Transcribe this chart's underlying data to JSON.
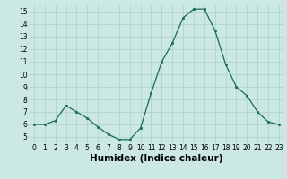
{
  "x": [
    0,
    1,
    2,
    3,
    4,
    5,
    6,
    7,
    8,
    9,
    10,
    11,
    12,
    13,
    14,
    15,
    16,
    17,
    18,
    19,
    20,
    21,
    22,
    23
  ],
  "y": [
    6.0,
    6.0,
    6.3,
    7.5,
    7.0,
    6.5,
    5.8,
    5.2,
    4.8,
    4.8,
    5.7,
    8.5,
    11.0,
    12.5,
    14.5,
    15.2,
    15.2,
    13.5,
    10.8,
    9.0,
    8.3,
    7.0,
    6.2,
    6.0
  ],
  "xlabel": "Humidex (Indice chaleur)",
  "ylim": [
    4.5,
    15.5
  ],
  "xlim": [
    -0.5,
    23.5
  ],
  "yticks": [
    5,
    6,
    7,
    8,
    9,
    10,
    11,
    12,
    13,
    14,
    15
  ],
  "xticks": [
    0,
    1,
    2,
    3,
    4,
    5,
    6,
    7,
    8,
    9,
    10,
    11,
    12,
    13,
    14,
    15,
    16,
    17,
    18,
    19,
    20,
    21,
    22,
    23
  ],
  "line_color": "#1a6b5a",
  "marker_color": "#1a6b5a",
  "bg_color": "#cce8e4",
  "grid_color": "#aad0cc",
  "tick_fontsize": 5.5,
  "xlabel_fontsize": 7.5
}
